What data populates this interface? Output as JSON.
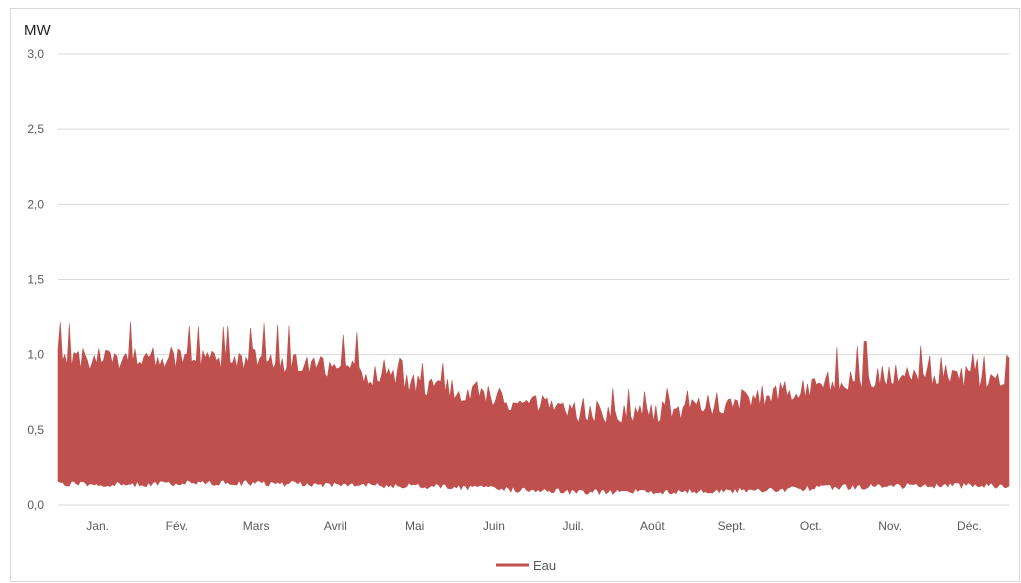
{
  "chart_data": {
    "type": "area",
    "unit_label": "MW",
    "ylim": [
      0,
      3.0
    ],
    "y_ticks": [
      "3,0",
      "2,5",
      "2,0",
      "1,5",
      "1,0",
      "0,5",
      "0,0"
    ],
    "y_tick_values": [
      3.0,
      2.5,
      2.0,
      1.5,
      1.0,
      0.5,
      0.0
    ],
    "x_ticks": [
      "Jan.",
      "Fév.",
      "Mars",
      "Avril",
      "Mai",
      "Juin",
      "Juil.",
      "Août",
      "Sept.",
      "Oct.",
      "Nov.",
      "Déc."
    ],
    "grid": true,
    "legend_position": "bottom",
    "series": [
      {
        "name": "Eau",
        "color": "#c0504d",
        "monthly_upper": [
          1.05,
          1.05,
          1.05,
          1.0,
          0.9,
          0.8,
          0.68,
          0.7,
          0.78,
          0.9,
          0.95,
          0.9
        ],
        "monthly_lower": [
          0.13,
          0.13,
          0.14,
          0.13,
          0.12,
          0.1,
          0.08,
          0.08,
          0.09,
          0.11,
          0.12,
          0.12
        ],
        "peak_values": [
          1.22,
          1.23,
          1.21,
          1.17,
          0.98,
          0.86,
          0.72,
          0.8,
          0.85,
          1.05,
          1.1,
          1.01
        ]
      }
    ]
  }
}
